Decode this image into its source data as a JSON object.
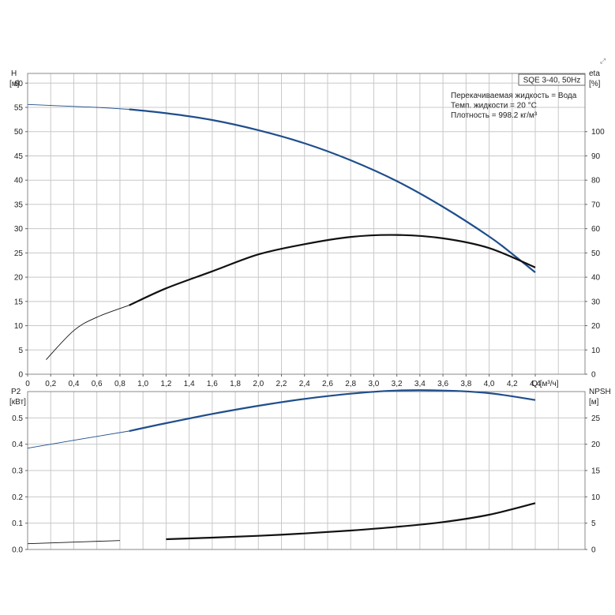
{
  "chart_data": [
    {
      "type": "line",
      "id": "upper",
      "model_label": "SQE 3-40, 50Hz",
      "info_lines": [
        "Перекачиваемая жидкость = Вода",
        "Темп. жидкости = 20 °C",
        "Плотность = 998.2 кг/м³"
      ],
      "left_axis": {
        "label": "H",
        "unit": "[м]",
        "ylim": [
          0,
          62
        ],
        "ticks": [
          0,
          5,
          10,
          15,
          20,
          25,
          30,
          35,
          40,
          45,
          50,
          55,
          60
        ]
      },
      "right_axis": {
        "label": "eta",
        "unit": "[%]",
        "ylim": [
          0,
          124
        ],
        "ticks": [
          0,
          10,
          20,
          30,
          40,
          50,
          60,
          70,
          80,
          90,
          100
        ]
      },
      "x_axis": {
        "label": "Q [м³/ч]",
        "xlim": [
          0,
          4.6
        ],
        "ticks": [
          "0",
          "0,2",
          "0,4",
          "0,6",
          "0,8",
          "1,0",
          "1,2",
          "1,4",
          "1,6",
          "1,8",
          "2,0",
          "2,2",
          "2,4",
          "2,6",
          "2,8",
          "3,0",
          "3,2",
          "3,4",
          "3,6",
          "3,8",
          "4,0",
          "4,2",
          "4,4"
        ]
      },
      "grid": true,
      "series": [
        {
          "axis": "left",
          "color": "#1f4e8c",
          "x": [
            0,
            0.2,
            0.4,
            0.6,
            0.88,
            1.2,
            1.6,
            2.0,
            2.4,
            2.8,
            3.2,
            3.6,
            4.0,
            4.2,
            4.4
          ],
          "y": [
            55.6,
            55.4,
            55.2,
            55.0,
            54.6,
            53.8,
            52.4,
            50.3,
            47.6,
            44.1,
            39.8,
            34.5,
            28.4,
            24.8,
            21.0
          ],
          "thin_until": 0.88
        },
        {
          "axis": "right",
          "color": "#111111",
          "x": [
            0.16,
            0.4,
            0.6,
            0.88,
            1.2,
            1.6,
            2.0,
            2.4,
            2.8,
            3.2,
            3.6,
            4.0,
            4.4
          ],
          "y": [
            6,
            18,
            23.5,
            28.4,
            35.4,
            42.4,
            49.4,
            53.6,
            56.6,
            57.4,
            56.0,
            52.0,
            44.0
          ],
          "thin_until": 0.88
        }
      ]
    },
    {
      "type": "line",
      "id": "lower",
      "left_axis": {
        "label": "P2",
        "unit": "[кВт]",
        "ylim": [
          0,
          0.6
        ],
        "ticks": [
          "0.0",
          "0.1",
          "0.2",
          "0.3",
          "0.4",
          "0.5"
        ]
      },
      "right_axis": {
        "label": "NPSH",
        "unit": "[м]",
        "ylim": [
          0,
          30
        ],
        "ticks": [
          "0",
          "5",
          "10",
          "15",
          "20",
          "25"
        ]
      },
      "x_axis": {
        "xlim": [
          0,
          4.6
        ]
      },
      "grid": true,
      "series": [
        {
          "axis": "left",
          "color": "#1f4e8c",
          "x": [
            0,
            0.4,
            0.88,
            1.2,
            1.6,
            2.0,
            2.4,
            2.8,
            3.2,
            3.6,
            4.0,
            4.4
          ],
          "y": [
            0.385,
            0.415,
            0.45,
            0.48,
            0.515,
            0.546,
            0.572,
            0.592,
            0.604,
            0.604,
            0.594,
            0.568
          ],
          "thin_until": 0.88
        },
        {
          "axis": "right",
          "color": "#111111",
          "x": [
            0,
            0.4,
            0.8,
            1.2,
            1.6,
            2.0,
            2.4,
            2.8,
            3.2,
            3.6,
            4.0,
            4.4
          ],
          "y": [
            1.1,
            1.4,
            1.7,
            1.95,
            2.25,
            2.6,
            3.05,
            3.6,
            4.3,
            5.2,
            6.6,
            8.8
          ],
          "thin_until": 0.88
        }
      ]
    }
  ]
}
